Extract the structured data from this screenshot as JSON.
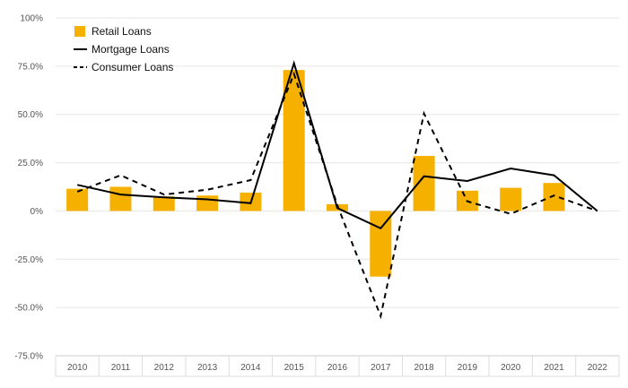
{
  "chart_data": {
    "type": "bar",
    "categories": [
      "2010",
      "2011",
      "2012",
      "2013",
      "2014",
      "2015",
      "2016",
      "2017",
      "2018",
      "2019",
      "2020",
      "2021",
      "2022"
    ],
    "series": [
      {
        "name": "Retail Loans",
        "type": "bar",
        "color": "#F5B000",
        "values": [
          11.5,
          12.5,
          7.5,
          8.0,
          9.5,
          73.0,
          3.5,
          -34.0,
          28.5,
          10.5,
          12.0,
          14.5,
          0.0
        ]
      },
      {
        "name": "Mortgage Loans",
        "type": "line",
        "style": "solid",
        "color": "#000000",
        "values": [
          13.5,
          8.5,
          7.0,
          6.0,
          4.0,
          76.5,
          1.5,
          -9.0,
          18.0,
          15.5,
          22.0,
          18.5,
          0.0
        ]
      },
      {
        "name": "Consumer Loans",
        "type": "line",
        "style": "dashed",
        "color": "#000000",
        "values": [
          10.0,
          18.5,
          8.5,
          11.0,
          16.0,
          71.0,
          3.0,
          -54.5,
          50.5,
          5.0,
          -1.5,
          8.0,
          0.0
        ]
      }
    ],
    "y_ticks": [
      "100%",
      "75.0%",
      "50.0%",
      "25.0%",
      "0%",
      "-25.0%",
      "-50.0%",
      "-75.0%"
    ],
    "ylim": [
      -75,
      100
    ],
    "grid": true,
    "legend_position": "top-left"
  }
}
